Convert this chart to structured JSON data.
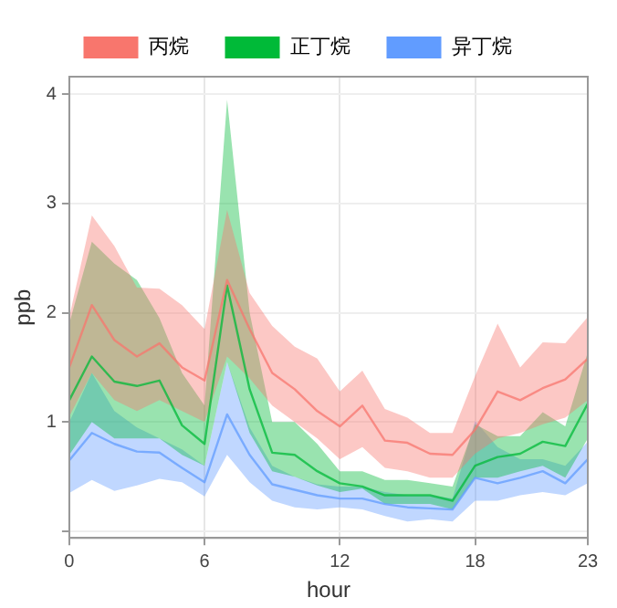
{
  "chart_data": {
    "type": "line",
    "xlabel": "hour",
    "ylabel": "ppb",
    "x": [
      0,
      1,
      2,
      3,
      4,
      5,
      6,
      7,
      8,
      9,
      10,
      11,
      12,
      13,
      14,
      15,
      16,
      17,
      18,
      19,
      20,
      21,
      22,
      23
    ],
    "series": [
      {
        "name": "丙烷",
        "color": "#f8766d",
        "values": [
          1.5,
          2.07,
          1.75,
          1.6,
          1.72,
          1.5,
          1.38,
          2.3,
          1.85,
          1.45,
          1.3,
          1.1,
          0.96,
          1.15,
          0.83,
          0.81,
          0.71,
          0.7,
          0.93,
          1.28,
          1.2,
          1.31,
          1.39,
          1.58
        ],
        "lower": [
          1.05,
          1.45,
          1.2,
          1.1,
          1.2,
          1.1,
          1.0,
          1.6,
          1.4,
          1.15,
          1.0,
          0.85,
          0.66,
          0.77,
          0.58,
          0.55,
          0.49,
          0.49,
          0.71,
          0.85,
          0.9,
          0.98,
          1.04,
          1.2
        ],
        "upper": [
          1.96,
          2.89,
          2.61,
          2.23,
          2.22,
          2.07,
          1.85,
          2.94,
          2.18,
          1.88,
          1.69,
          1.58,
          1.28,
          1.47,
          1.12,
          1.04,
          0.9,
          0.9,
          1.42,
          1.9,
          1.5,
          1.73,
          1.72,
          1.96
        ]
      },
      {
        "name": "正丁烷",
        "color": "#00ba38",
        "values": [
          1.2,
          1.6,
          1.37,
          1.33,
          1.38,
          0.97,
          0.8,
          2.25,
          1.3,
          0.72,
          0.7,
          0.55,
          0.44,
          0.41,
          0.33,
          0.33,
          0.33,
          0.28,
          0.6,
          0.68,
          0.71,
          0.82,
          0.78,
          1.17
        ],
        "lower": [
          0.7,
          1.0,
          0.85,
          0.85,
          0.85,
          0.7,
          0.6,
          1.55,
          0.9,
          0.55,
          0.5,
          0.42,
          0.36,
          0.39,
          0.25,
          0.25,
          0.25,
          0.2,
          0.49,
          0.49,
          0.55,
          0.6,
          0.49,
          0.85
        ],
        "upper": [
          1.9,
          2.65,
          2.45,
          2.3,
          1.95,
          1.45,
          1.15,
          3.95,
          2.0,
          1.0,
          1.0,
          0.8,
          0.55,
          0.55,
          0.47,
          0.47,
          0.44,
          0.41,
          0.98,
          0.87,
          0.87,
          1.09,
          0.96,
          1.64
        ]
      },
      {
        "name": "异丁烷",
        "color": "#619cff",
        "values": [
          0.65,
          0.9,
          0.8,
          0.73,
          0.72,
          0.58,
          0.45,
          1.07,
          0.7,
          0.43,
          0.38,
          0.33,
          0.3,
          0.3,
          0.25,
          0.22,
          0.21,
          0.2,
          0.49,
          0.44,
          0.49,
          0.55,
          0.44,
          0.66
        ],
        "lower": [
          0.35,
          0.47,
          0.37,
          0.42,
          0.48,
          0.45,
          0.32,
          0.7,
          0.45,
          0.28,
          0.22,
          0.2,
          0.22,
          0.2,
          0.14,
          0.09,
          0.11,
          0.09,
          0.28,
          0.28,
          0.33,
          0.36,
          0.33,
          0.44
        ],
        "upper": [
          1.0,
          1.45,
          1.1,
          0.95,
          0.85,
          0.75,
          0.6,
          1.55,
          0.95,
          0.6,
          0.5,
          0.43,
          0.41,
          0.41,
          0.36,
          0.33,
          0.33,
          0.3,
          1.01,
          0.77,
          0.66,
          0.66,
          0.6,
          0.82
        ]
      }
    ],
    "xlim": [
      0,
      23
    ],
    "xticks": [
      0,
      6,
      12,
      18,
      23
    ],
    "ylim": [
      -0.06,
      4.16
    ],
    "yticks": [
      {
        "value": 0,
        "label": null
      },
      1,
      2,
      3,
      4
    ],
    "grid": true,
    "legend": "top",
    "marker": "none",
    "line_style": "solid"
  }
}
